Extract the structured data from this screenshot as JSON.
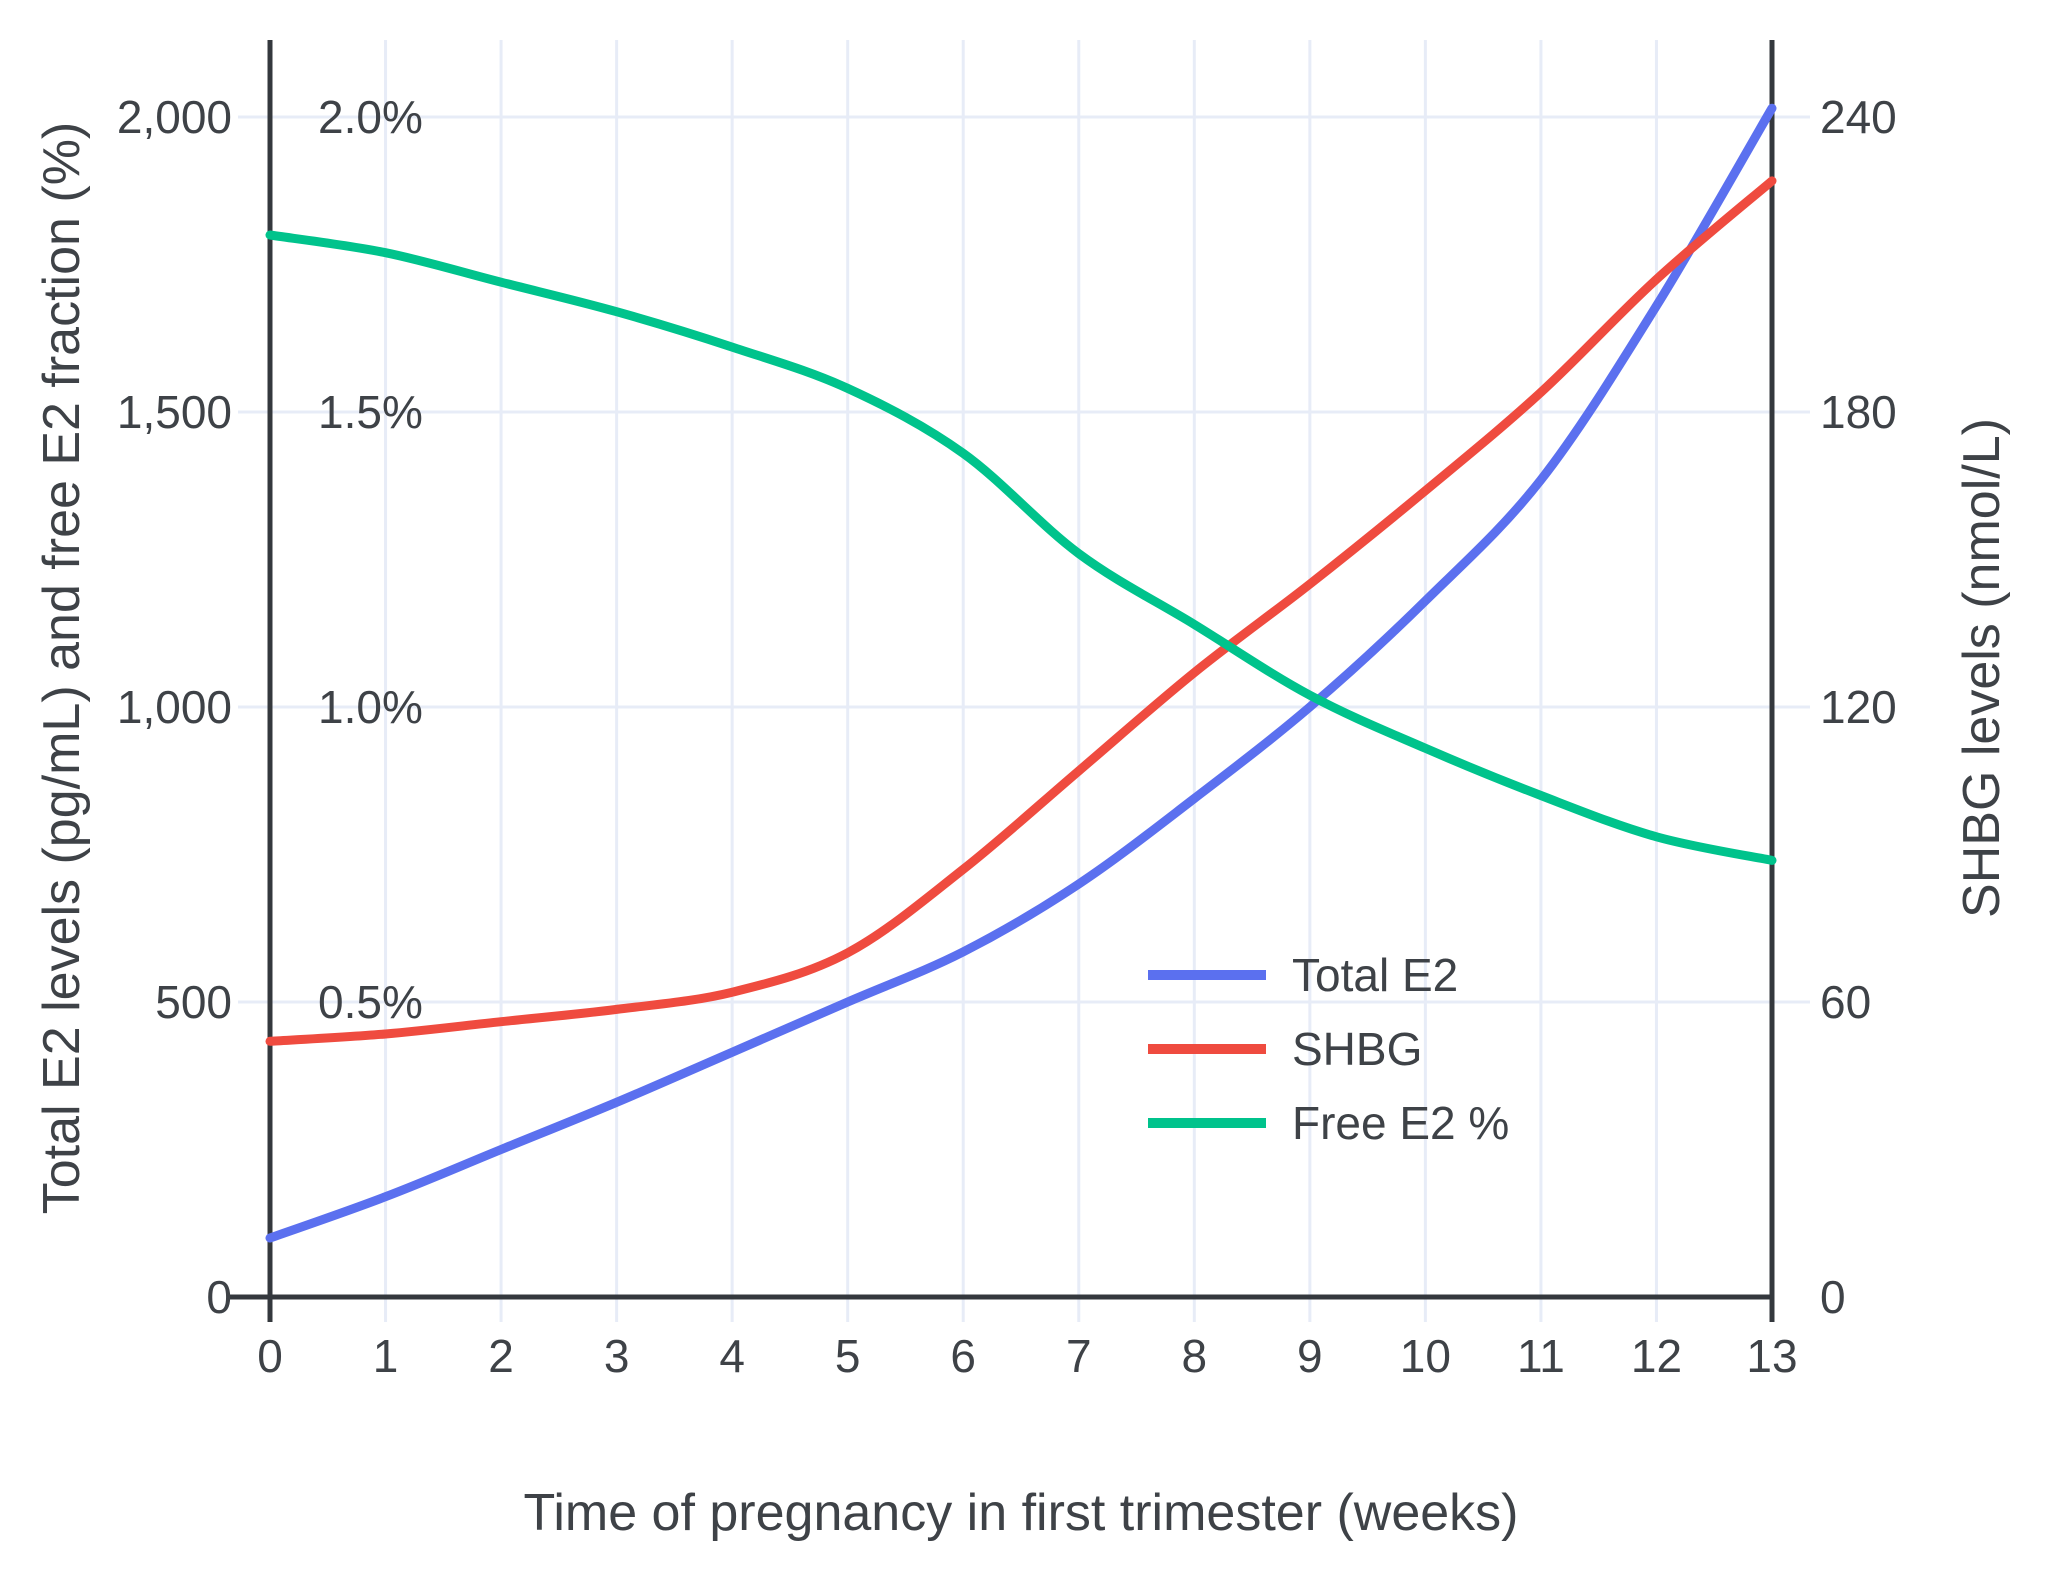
{
  "figure": {
    "x_axis": {
      "title": "Time of pregnancy in first trimester (weeks)",
      "tick_labels": [
        "0",
        "1",
        "2",
        "3",
        "4",
        "5",
        "6",
        "7",
        "8",
        "9",
        "10",
        "11",
        "12",
        "13"
      ]
    },
    "y_left": {
      "title": "Total E2 levels (pg/mL) and free E2 fraction (%)",
      "tick_labels": [
        "0",
        "500",
        "1,000",
        "1,500",
        "2,000"
      ],
      "tick_values": [
        0,
        500,
        1000,
        1500,
        2000
      ],
      "percent_labels": [
        "0.5%",
        "1.0%",
        "1.5%",
        "2.0%"
      ],
      "percent_values": [
        0.5,
        1.0,
        1.5,
        2.0
      ]
    },
    "y_right": {
      "title": "SHBG levels (nmol/L)",
      "tick_labels": [
        "0",
        "60",
        "120",
        "180",
        "240"
      ],
      "tick_values": [
        0,
        60,
        120,
        180,
        240
      ]
    },
    "legend": [
      {
        "label": "Total E2",
        "color": "#5B70EF"
      },
      {
        "label": "SHBG",
        "color": "#EF4B3F"
      },
      {
        "label": "Free E2 %",
        "color": "#00C38C"
      }
    ],
    "colors": {
      "grid": "#E7ECF7",
      "axis": "#34383D",
      "text": "#3E4247",
      "background": "#FFFFFF"
    }
  },
  "chart_data": {
    "type": "line",
    "x": [
      0,
      1,
      2,
      3,
      4,
      5,
      6,
      7,
      8,
      9,
      10,
      11,
      12,
      13
    ],
    "xlabel": "Time of pregnancy in first trimester (weeks)",
    "ylabel_left": "Total E2 levels (pg/mL) and free E2 fraction (%)",
    "ylabel_right": "SHBG levels (nmol/L)",
    "x_range": [
      0,
      13
    ],
    "ylim_left": [
      0,
      2130
    ],
    "ylim_right": [
      0,
      256
    ],
    "grid": true,
    "legend_position": "inside-lower-right",
    "series": [
      {
        "name": "Total E2",
        "axis": "left",
        "unit": "pg/mL",
        "color": "#5B70EF",
        "values": [
          100,
          170,
          250,
          330,
          415,
          500,
          585,
          700,
          845,
          1000,
          1180,
          1385,
          1680,
          2015
        ]
      },
      {
        "name": "SHBG",
        "axis": "right",
        "unit": "nmol/L",
        "color": "#EF4B3F",
        "values": [
          52,
          53.5,
          56,
          58.5,
          62,
          70,
          87,
          107,
          127,
          145,
          164,
          184,
          207,
          227
        ]
      },
      {
        "name": "Free E2 %",
        "axis": "left_percent",
        "unit": "%",
        "color": "#00C38C",
        "values": [
          1.8,
          1.77,
          1.72,
          1.67,
          1.61,
          1.54,
          1.43,
          1.26,
          1.14,
          1.02,
          0.93,
          0.85,
          0.78,
          0.74
        ]
      }
    ]
  }
}
